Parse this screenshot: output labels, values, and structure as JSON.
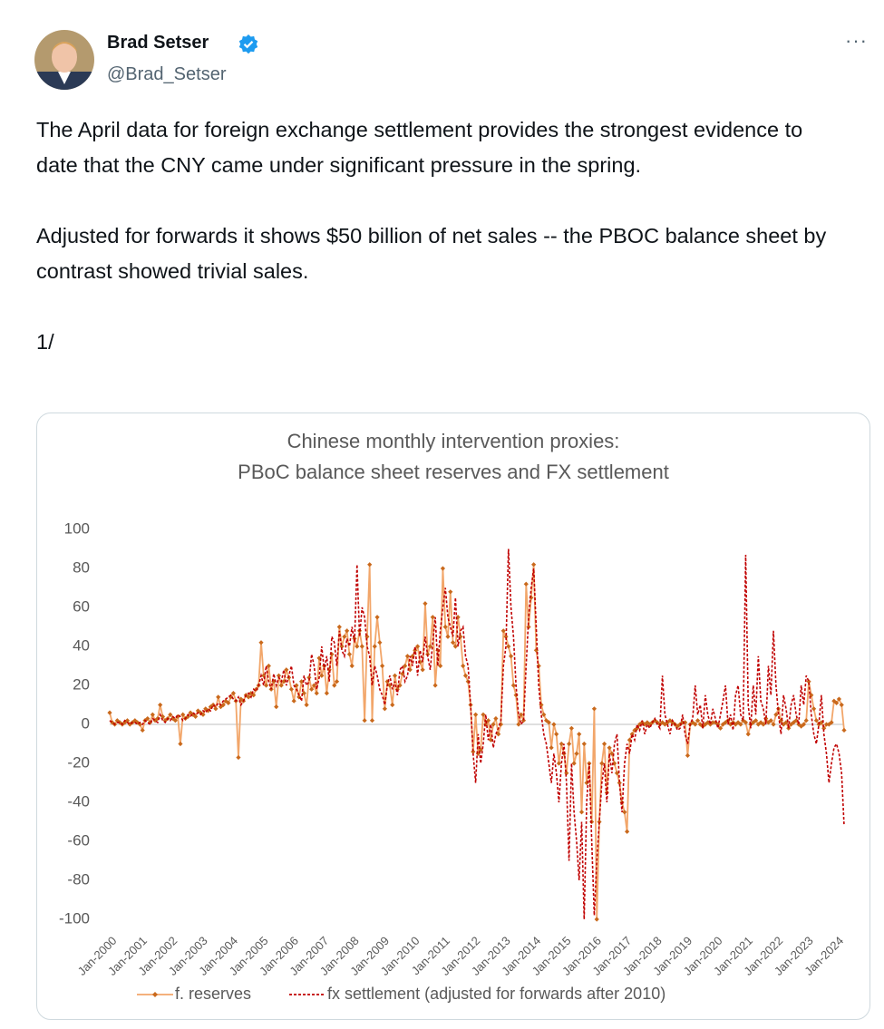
{
  "tweet": {
    "name": "Brad Setser",
    "handle": "@Brad_Setser",
    "more": "···",
    "paragraphs": [
      "The April data for foreign exchange settlement provides the strongest evidence to date that the CNY came under significant pressure in the spring.",
      "Adjusted for forwards it shows $50 billion of net sales -- the PBOC balance sheet by contrast showed trivial sales.",
      "1/"
    ]
  },
  "chart_data": {
    "type": "line",
    "title": [
      "Chinese monthly intervention proxies:",
      "PBoC balance sheet reserves and FX settlement"
    ],
    "categories": [
      "Jan-2000",
      null,
      null,
      null,
      null,
      null,
      null,
      null,
      null,
      null,
      null,
      null,
      "Jan-2001",
      null,
      null,
      null,
      null,
      null,
      null,
      null,
      null,
      null,
      null,
      null,
      "Jan-2002",
      null,
      null,
      null,
      null,
      null,
      null,
      null,
      null,
      null,
      null,
      null,
      "Jan-2003",
      null,
      null,
      null,
      null,
      null,
      null,
      null,
      null,
      null,
      null,
      null,
      "Jan-2004",
      null,
      null,
      null,
      null,
      null,
      null,
      null,
      null,
      null,
      null,
      null,
      "Jan-2005",
      null,
      null,
      null,
      null,
      null,
      null,
      null,
      null,
      null,
      null,
      null,
      "Jan-2006",
      null,
      null,
      null,
      null,
      null,
      null,
      null,
      null,
      null,
      null,
      null,
      "Jan-2007",
      null,
      null,
      null,
      null,
      null,
      null,
      null,
      null,
      null,
      null,
      null,
      "Jan-2008",
      null,
      null,
      null,
      null,
      null,
      null,
      null,
      null,
      null,
      null,
      null,
      "Jan-2009",
      null,
      null,
      null,
      null,
      null,
      null,
      null,
      null,
      null,
      null,
      null,
      "Jan-2010",
      null,
      null,
      null,
      null,
      null,
      null,
      null,
      null,
      null,
      null,
      null,
      "Jan-2011",
      null,
      null,
      null,
      null,
      null,
      null,
      null,
      null,
      null,
      null,
      null,
      "Jan-2012",
      null,
      null,
      null,
      null,
      null,
      null,
      null,
      null,
      null,
      null,
      null,
      "Jan-2013",
      null,
      null,
      null,
      null,
      null,
      null,
      null,
      null,
      null,
      null,
      null,
      "Jan-2014",
      null,
      null,
      null,
      null,
      null,
      null,
      null,
      null,
      null,
      null,
      null,
      "Jan-2015",
      null,
      null,
      null,
      null,
      null,
      null,
      null,
      null,
      null,
      null,
      null,
      "Jan-2016",
      null,
      null,
      null,
      null,
      null,
      null,
      null,
      null,
      null,
      null,
      null,
      "Jan-2017",
      null,
      null,
      null,
      null,
      null,
      null,
      null,
      null,
      null,
      null,
      null,
      "Jan-2018",
      null,
      null,
      null,
      null,
      null,
      null,
      null,
      null,
      null,
      null,
      null,
      "Jan-2019",
      null,
      null,
      null,
      null,
      null,
      null,
      null,
      null,
      null,
      null,
      null,
      "Jan-2020",
      null,
      null,
      null,
      null,
      null,
      null,
      null,
      null,
      null,
      null,
      null,
      "Jan-2021",
      null,
      null,
      null,
      null,
      null,
      null,
      null,
      null,
      null,
      null,
      null,
      "Jan-2022",
      null,
      null,
      null,
      null,
      null,
      null,
      null,
      null,
      null,
      null,
      null,
      "Jan-2023",
      null,
      null,
      null,
      null,
      null,
      null,
      null,
      null,
      null,
      null,
      null,
      "Jan-2024",
      null,
      null,
      null
    ],
    "series": [
      {
        "name": "f. reserves",
        "color": "#f2a66a",
        "marker_color": "#c9691c",
        "dashed": false,
        "markers": true,
        "values": [
          6,
          1,
          0,
          2,
          1,
          0,
          1,
          2,
          0,
          1,
          2,
          1,
          0,
          -3,
          2,
          3,
          1,
          5,
          2,
          3,
          10,
          4,
          2,
          3,
          5,
          3,
          2,
          4,
          -10,
          5,
          3,
          4,
          6,
          5,
          4,
          7,
          6,
          5,
          8,
          7,
          9,
          10,
          8,
          14,
          9,
          10,
          12,
          11,
          14,
          16,
          12,
          -17,
          13,
          12,
          15,
          14,
          16,
          15,
          18,
          20,
          42,
          25,
          20,
          30,
          18,
          22,
          9,
          25,
          20,
          22,
          28,
          24,
          18,
          12,
          20,
          14,
          22,
          16,
          10,
          24,
          18,
          20,
          16,
          34,
          25,
          30,
          16,
          28,
          36,
          20,
          22,
          50,
          40,
          45,
          48,
          36,
          30,
          44,
          40,
          48,
          40,
          2,
          45,
          82,
          2,
          40,
          55,
          42,
          30,
          8,
          22,
          20,
          10,
          25,
          18,
          20,
          26,
          30,
          35,
          28,
          35,
          38,
          40,
          32,
          28,
          62,
          36,
          40,
          55,
          20,
          38,
          30,
          80,
          50,
          45,
          68,
          42,
          40,
          55,
          45,
          30,
          25,
          22,
          10,
          -14,
          5,
          -15,
          -13,
          5,
          0,
          2,
          -8,
          0,
          3,
          -5,
          0,
          48,
          45,
          40,
          35,
          20,
          15,
          0,
          5,
          2,
          72,
          50,
          65,
          82,
          38,
          30,
          10,
          5,
          2,
          1,
          -12,
          0,
          -5,
          -20,
          -10,
          -15,
          -25,
          -10,
          -2,
          -20,
          -15,
          -5,
          -45,
          -10,
          -30,
          -20,
          -50,
          8,
          -100,
          -50,
          -20,
          -10,
          -35,
          -12,
          -15,
          -20,
          -25,
          -30,
          -40,
          -45,
          -55,
          -8,
          -5,
          -3,
          -2,
          0,
          1,
          0,
          1,
          0,
          1,
          2,
          1,
          0,
          1,
          0,
          1,
          2,
          1,
          0,
          -1,
          0,
          1,
          1,
          -16,
          0,
          1,
          0,
          2,
          0,
          -1,
          0,
          1,
          0,
          1,
          1,
          0,
          -2,
          0,
          1,
          2,
          0,
          1,
          0,
          1,
          0,
          2,
          1,
          -5,
          0,
          1,
          2,
          0,
          1,
          0,
          3,
          1,
          2,
          0,
          5,
          8,
          2,
          0,
          1,
          -2,
          0,
          1,
          2,
          0,
          -1,
          0,
          2,
          22,
          15,
          8,
          2,
          0,
          1,
          -2,
          0,
          0,
          1,
          12,
          11,
          13,
          10,
          -3
        ]
      },
      {
        "name": "fx settlement (adjusted for forwards after 2010)",
        "color": "#c00000",
        "dashed": true,
        "markers": false,
        "values": [
          2,
          1,
          0,
          1,
          1,
          0,
          2,
          1,
          0,
          1,
          1,
          0,
          1,
          0,
          2,
          1,
          0,
          3,
          2,
          1,
          5,
          2,
          1,
          3,
          2,
          4,
          3,
          5,
          4,
          2,
          3,
          5,
          4,
          6,
          5,
          6,
          5,
          7,
          6,
          8,
          7,
          10,
          9,
          11,
          10,
          12,
          13,
          14,
          15,
          13,
          12,
          14,
          10,
          12,
          15,
          16,
          14,
          18,
          17,
          20,
          25,
          20,
          30,
          22,
          18,
          26,
          20,
          24,
          22,
          28,
          20,
          25,
          30,
          20,
          18,
          15,
          12,
          25,
          20,
          22,
          36,
          30,
          18,
          24,
          40,
          28,
          35,
          22,
          45,
          42,
          30,
          48,
          38,
          35,
          44,
          40,
          50,
          42,
          82,
          45,
          60,
          55,
          40,
          35,
          20,
          30,
          25,
          18,
          15,
          10,
          20,
          25,
          18,
          22,
          15,
          28,
          30,
          22,
          25,
          35,
          30,
          40,
          25,
          38,
          32,
          45,
          35,
          28,
          42,
          55,
          30,
          48,
          60,
          70,
          55,
          50,
          45,
          65,
          40,
          48,
          50,
          35,
          30,
          10,
          -15,
          -30,
          -5,
          -20,
          -10,
          5,
          -8,
          0,
          -12,
          -5,
          -2,
          2,
          30,
          40,
          90,
          60,
          45,
          20,
          5,
          0,
          2,
          30,
          55,
          70,
          80,
          50,
          20,
          5,
          -5,
          -10,
          -20,
          -30,
          -15,
          -25,
          -40,
          -20,
          -10,
          -30,
          -70,
          -20,
          -45,
          -60,
          -80,
          -50,
          -100,
          -40,
          -20,
          -60,
          -98,
          -70,
          -50,
          -30,
          -20,
          -40,
          -15,
          -25,
          -10,
          -5,
          -30,
          -45,
          -20,
          -10,
          -15,
          -5,
          -8,
          0,
          -3,
          2,
          -5,
          0,
          -2,
          1,
          3,
          0,
          -2,
          25,
          5,
          0,
          -5,
          2,
          0,
          -3,
          -2,
          5,
          -5,
          -10,
          0,
          3,
          20,
          5,
          10,
          -2,
          15,
          5,
          0,
          8,
          3,
          -2,
          5,
          12,
          20,
          0,
          5,
          -3,
          15,
          20,
          5,
          2,
          87,
          10,
          -2,
          20,
          5,
          35,
          12,
          8,
          0,
          30,
          15,
          48,
          20,
          5,
          -5,
          15,
          8,
          -2,
          10,
          15,
          5,
          0,
          20,
          10,
          25,
          22,
          5,
          -5,
          -10,
          0,
          15,
          -5,
          -15,
          -30,
          -20,
          -12,
          -10,
          -15,
          -25,
          -52
        ]
      }
    ],
    "ylim": [
      -100,
      100
    ],
    "yticks": [
      -100,
      -80,
      -60,
      -40,
      -20,
      0,
      20,
      40,
      60,
      80,
      100
    ],
    "grid": false,
    "legend": "bottom"
  }
}
